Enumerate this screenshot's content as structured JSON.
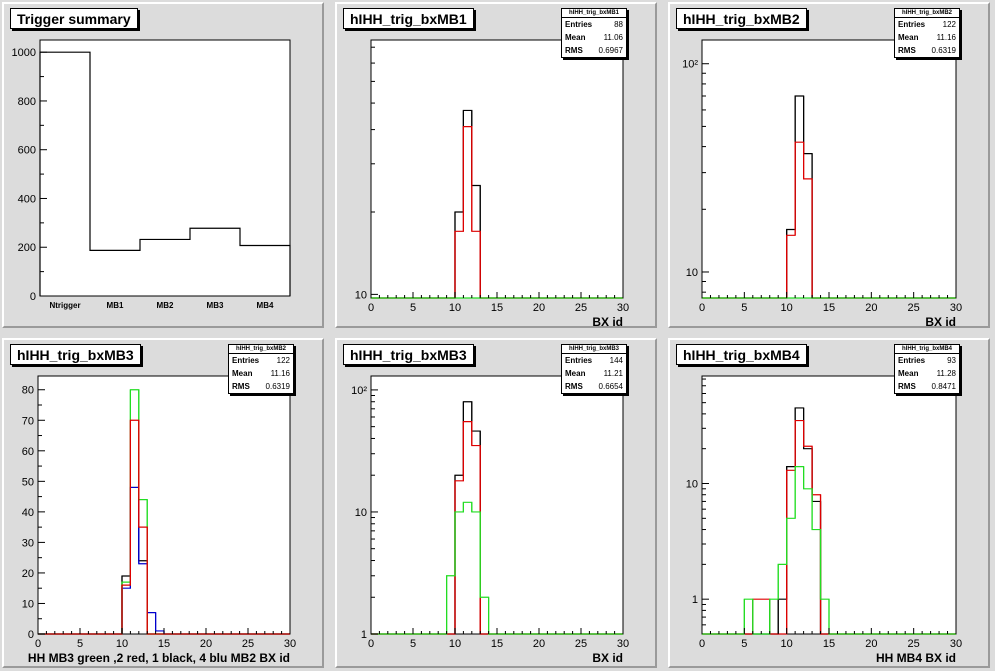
{
  "colors": {
    "black": "#000000",
    "red": "#dd0000",
    "green": "#22dd22",
    "blue": "#0000cc",
    "frame_bg": "#ffffff"
  },
  "chart_data": [
    {
      "id": "summary",
      "type": "bar",
      "title": "Trigger summary",
      "categories": [
        "Ntrigger",
        "MB1",
        "MB2",
        "MB3",
        "MB4"
      ],
      "values": [
        1000,
        187,
        232,
        278,
        207
      ],
      "ylim": [
        0,
        1050
      ],
      "yticks": [
        0,
        200,
        400,
        600,
        800,
        1000
      ],
      "xlabel": "",
      "stats": null
    },
    {
      "id": "mb1",
      "type": "line",
      "title": "hIHH_trig_bxMB1",
      "log": true,
      "xlim": [
        0,
        30
      ],
      "ylim": [
        9.7,
        85
      ],
      "xticks": [
        0,
        5,
        10,
        15,
        20,
        25,
        30
      ],
      "yticks": [
        {
          "v": 10,
          "label": "10"
        }
      ],
      "xlabel": "BX id",
      "stats": {
        "name": "hIHH_trig_bxMB1",
        "Entries": "88",
        "Mean": "11.06",
        "RMS": "0.6967"
      },
      "series": [
        {
          "color": "black",
          "bins": [
            [
              10,
              20
            ],
            [
              11,
              47
            ],
            [
              12,
              25
            ]
          ]
        },
        {
          "color": "red",
          "bins": [
            [
              10,
              17
            ],
            [
              11,
              41
            ],
            [
              12,
              17
            ]
          ]
        },
        {
          "color": "green",
          "bins": []
        }
      ]
    },
    {
      "id": "mb2",
      "type": "line",
      "title": "hIHH_trig_bxMB2",
      "log": true,
      "xlim": [
        0,
        30
      ],
      "ylim": [
        7.5,
        130
      ],
      "xticks": [
        0,
        5,
        10,
        15,
        20,
        25,
        30
      ],
      "yticks": [
        {
          "v": 10,
          "label": "10"
        },
        {
          "v": 100,
          "label": "10²"
        }
      ],
      "xlabel": "BX id",
      "stats": {
        "name": "hIHH_trig_bxMB2",
        "Entries": "122",
        "Mean": "11.16",
        "RMS": "0.6319"
      },
      "series": [
        {
          "color": "black",
          "bins": [
            [
              10,
              16
            ],
            [
              11,
              70
            ],
            [
              12,
              37
            ]
          ]
        },
        {
          "color": "red",
          "bins": [
            [
              10,
              15
            ],
            [
              11,
              42
            ],
            [
              12,
              28
            ]
          ]
        },
        {
          "color": "green",
          "bins": []
        }
      ]
    },
    {
      "id": "mb3lin",
      "type": "line",
      "title": "hIHH_trig_bxMB3",
      "log": false,
      "xlim": [
        0,
        30
      ],
      "ylim": [
        0,
        84.5
      ],
      "xticks": [
        0,
        5,
        10,
        15,
        20,
        25,
        30
      ],
      "yticks": [
        {
          "v": 0,
          "label": "0"
        },
        {
          "v": 10,
          "label": "10"
        },
        {
          "v": 20,
          "label": "20"
        },
        {
          "v": 30,
          "label": "30"
        },
        {
          "v": 40,
          "label": "40"
        },
        {
          "v": 50,
          "label": "50"
        },
        {
          "v": 60,
          "label": "60"
        },
        {
          "v": 70,
          "label": "70"
        },
        {
          "v": 80,
          "label": "80"
        }
      ],
      "xlabel": "HH  MB3 green ,2 red, 1 black, 4 blu    MB2 BX id",
      "stats": {
        "name": "hIHH_trig_bxMB2",
        "Entries": "122",
        "Mean": "11.16",
        "RMS": "0.6319"
      },
      "series": [
        {
          "color": "black",
          "bins": [
            [
              10,
              19
            ],
            [
              11,
              48
            ],
            [
              12,
              24
            ]
          ]
        },
        {
          "color": "blue",
          "bins": [
            [
              10,
              15
            ],
            [
              11,
              48
            ],
            [
              12,
              23
            ],
            [
              13,
              7
            ],
            [
              14,
              1
            ]
          ]
        },
        {
          "color": "green",
          "bins": [
            [
              10,
              17
            ],
            [
              11,
              80
            ],
            [
              12,
              44
            ]
          ]
        },
        {
          "color": "red",
          "bins": [
            [
              10,
              16
            ],
            [
              11,
              70
            ],
            [
              12,
              35
            ]
          ]
        }
      ]
    },
    {
      "id": "mb3log",
      "type": "line",
      "title": "hIHH_trig_bxMB3",
      "log": true,
      "xlim": [
        0,
        30
      ],
      "ylim": [
        1,
        130
      ],
      "xticks": [
        0,
        5,
        10,
        15,
        20,
        25,
        30
      ],
      "yticks": [
        {
          "v": 1,
          "label": "1"
        },
        {
          "v": 10,
          "label": "10"
        },
        {
          "v": 100,
          "label": "10²"
        }
      ],
      "xlabel": "BX id",
      "stats": {
        "name": "hIHH_trig_bxMB3",
        "Entries": "144",
        "Mean": "11.21",
        "RMS": "0.6654"
      },
      "series": [
        {
          "color": "black",
          "bins": [
            [
              10,
              20
            ],
            [
              11,
              80
            ],
            [
              12,
              46
            ]
          ]
        },
        {
          "color": "red",
          "bins": [
            [
              10,
              18
            ],
            [
              11,
              55
            ],
            [
              12,
              35
            ]
          ]
        },
        {
          "color": "green",
          "bins": [
            [
              9,
              3
            ],
            [
              10,
              10
            ],
            [
              11,
              12
            ],
            [
              12,
              10
            ],
            [
              13,
              2
            ]
          ]
        }
      ]
    },
    {
      "id": "mb4",
      "type": "line",
      "title": "hIHH_trig_bxMB4",
      "log": true,
      "xlim": [
        0,
        30
      ],
      "ylim": [
        0.5,
        85
      ],
      "xticks": [
        0,
        5,
        10,
        15,
        20,
        25,
        30
      ],
      "yticks": [
        {
          "v": 1,
          "label": "1"
        },
        {
          "v": 10,
          "label": "10"
        }
      ],
      "xlabel": "HH MB4 BX id",
      "stats": {
        "name": "hIHH_trig_bxMB4",
        "Entries": "93",
        "Mean": "11.28",
        "RMS": "0.8471"
      },
      "series": [
        {
          "color": "black",
          "bins": [
            [
              9,
              1
            ],
            [
              10,
              14
            ],
            [
              11,
              45
            ],
            [
              12,
              20
            ],
            [
              13,
              7
            ]
          ]
        },
        {
          "color": "red",
          "bins": [
            [
              6,
              1
            ],
            [
              7,
              1
            ],
            [
              10,
              13
            ],
            [
              11,
              35
            ],
            [
              12,
              21
            ],
            [
              13,
              8
            ]
          ]
        },
        {
          "color": "green",
          "bins": [
            [
              5,
              1
            ],
            [
              8,
              1
            ],
            [
              9,
              2
            ],
            [
              10,
              5
            ],
            [
              11,
              14
            ],
            [
              12,
              9
            ],
            [
              13,
              4
            ],
            [
              14,
              1
            ]
          ]
        }
      ]
    }
  ]
}
